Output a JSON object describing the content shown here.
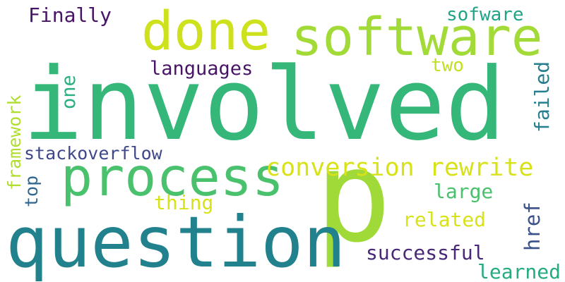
{
  "words": {
    "involved": {
      "text": "involved",
      "color": "#35b779"
    },
    "p": {
      "text": "p",
      "color": "#a0da39"
    },
    "question": {
      "text": "question",
      "color": "#21818c"
    },
    "process": {
      "text": "process",
      "color": "#4ac16d"
    },
    "software": {
      "text": "software",
      "color": "#a2da37"
    },
    "done": {
      "text": "done",
      "color": "#cde11d"
    },
    "conversion_rewrite": {
      "text": "conversion rewrite",
      "color": "#d8e219"
    },
    "languages": {
      "text": "languages",
      "color": "#471466"
    },
    "finally": {
      "text": "Finally",
      "color": "#471466"
    },
    "sofware": {
      "text": "sofware",
      "color": "#20a386"
    },
    "two": {
      "text": "two",
      "color": "#c2df23"
    },
    "one": {
      "text": "one",
      "color": "#2ab07f"
    },
    "framework": {
      "text": "framework",
      "color": "#b0dd2f"
    },
    "stackoverflow": {
      "text": "stackoverflow",
      "color": "#3f4889"
    },
    "failed": {
      "text": "failed",
      "color": "#277e8e"
    },
    "top": {
      "text": "top",
      "color": "#31668e"
    },
    "thing": {
      "text": "thing",
      "color": "#d8e219"
    },
    "large": {
      "text": "large",
      "color": "#4ac16d"
    },
    "related": {
      "text": "related",
      "color": "#d8e219"
    },
    "href": {
      "text": "href",
      "color": "#3b518b"
    },
    "successful": {
      "text": "successful",
      "color": "#482878"
    },
    "learned": {
      "text": "learned",
      "color": "#25ab82"
    }
  }
}
